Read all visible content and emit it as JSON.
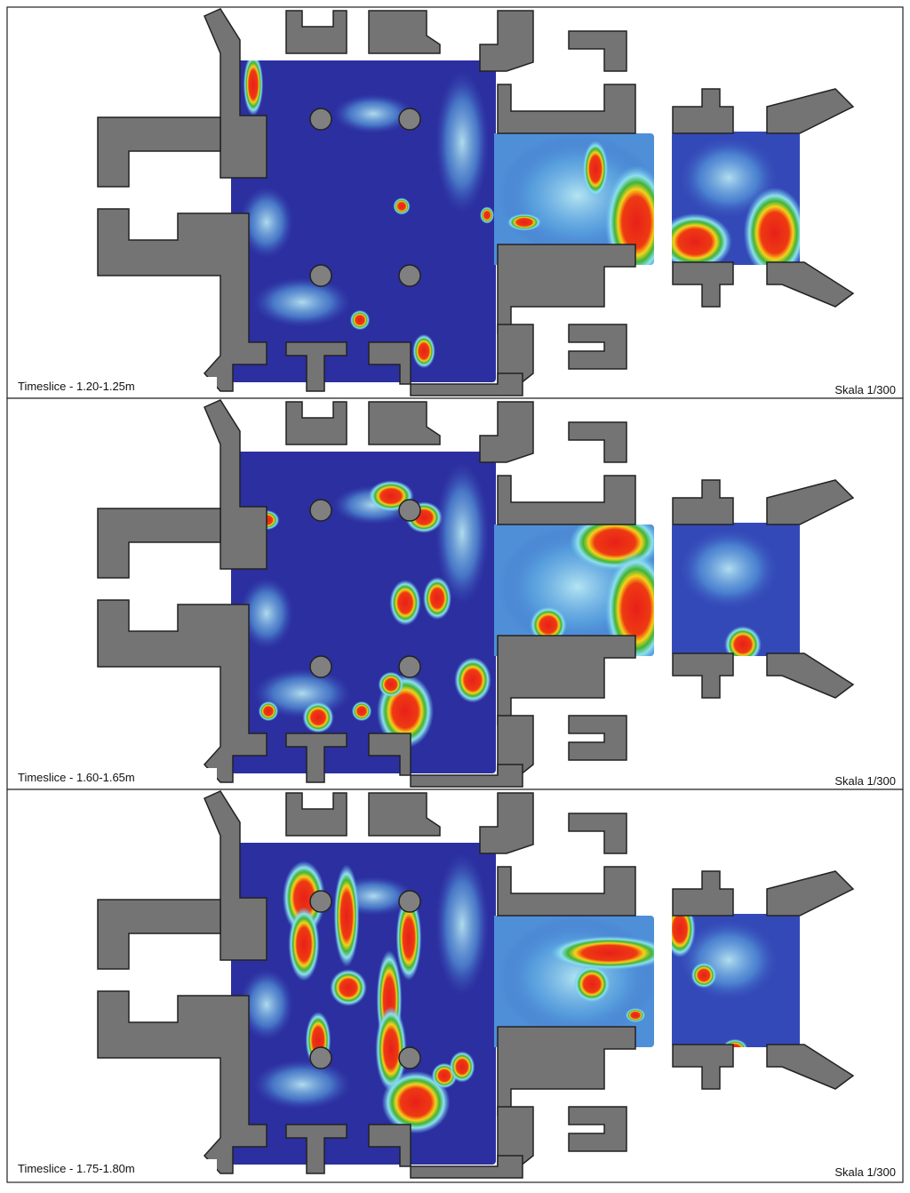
{
  "panels": [
    {
      "timeslice": "Timeslice - 1.20-1.25m",
      "scale": "Skala 1/300"
    },
    {
      "timeslice": "Timeslice - 1.60-1.65m",
      "scale": "Skala 1/300"
    },
    {
      "timeslice": "Timeslice - 1.75-1.80m",
      "scale": "Skala 1/300"
    }
  ]
}
